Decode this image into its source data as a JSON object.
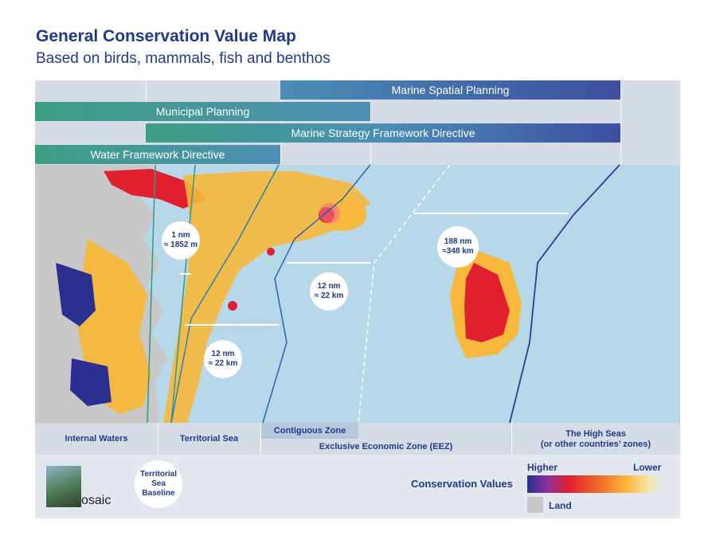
{
  "title": "General Conservation Value Map",
  "subtitle": "Based on birds, mammals, fish and benthos",
  "bars": {
    "msp": "Marine Spatial Planning",
    "municipal": "Municipal Planning",
    "msfd": "Marine Strategy Framework Directive",
    "wfd": "Water Framework Directive"
  },
  "distances": {
    "d1": {
      "line1": "1 nm",
      "line2": "≈ 1852 m"
    },
    "d2": {
      "line1": "12 nm",
      "line2": "≈ 22 km"
    },
    "d3": {
      "line1": "12 nm",
      "line2": "≈ 22 km"
    },
    "d4": {
      "line1": "188 nm",
      "line2": "≈348 km"
    }
  },
  "zones": {
    "internal": "Internal Waters",
    "territorial": "Territorial Sea",
    "contiguous": "Contiguous Zone",
    "eez": "Exclusive Economic Zone (EEZ)",
    "high_seas_1": "The High Seas",
    "high_seas_2": "(or other countries’ zones)"
  },
  "baseline": {
    "line1": "Territorial",
    "line2": "Sea",
    "line3": "Baseline"
  },
  "legend": {
    "title": "Conservation Values",
    "higher": "Higher",
    "lower": "Lower",
    "land": "Land"
  },
  "logo": {
    "text": "osaic"
  },
  "colors": {
    "sea": "#b7d8e8",
    "land": "#c8c8c8",
    "high": "#2b2f8f",
    "red": "#e0202e",
    "orange": "#f7b83b",
    "title": "#1f3a8c"
  }
}
